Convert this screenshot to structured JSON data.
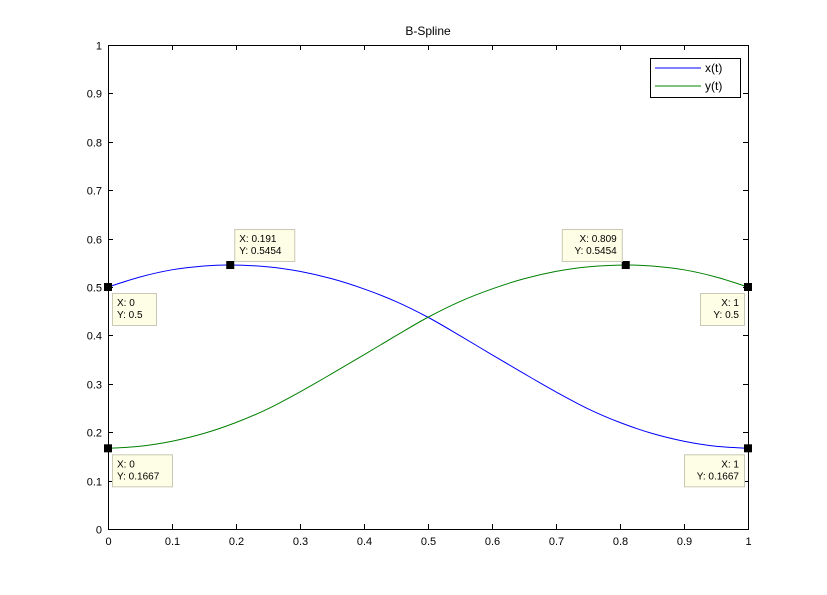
{
  "chart_data": {
    "type": "line",
    "title": "B-Spline",
    "xlabel": "",
    "ylabel": "",
    "xlim": [
      0,
      1
    ],
    "ylim": [
      0,
      1
    ],
    "xticks": [
      "0",
      "0.1",
      "0.2",
      "0.3",
      "0.4",
      "0.5",
      "0.6",
      "0.7",
      "0.8",
      "0.9",
      "1"
    ],
    "yticks": [
      "0",
      "0.1",
      "0.2",
      "0.3",
      "0.4",
      "0.5",
      "0.6",
      "0.7",
      "0.8",
      "0.9",
      "1"
    ],
    "grid": false,
    "legend_position": "top-right",
    "series": [
      {
        "name": "x(t)",
        "color": "#0000ff",
        "x": [
          0,
          0.05,
          0.1,
          0.15,
          0.191,
          0.25,
          0.3,
          0.35,
          0.4,
          0.45,
          0.5,
          0.55,
          0.6,
          0.65,
          0.7,
          0.75,
          0.8,
          0.85,
          0.9,
          0.95,
          1
        ],
        "y": [
          0.5,
          0.5207,
          0.5355,
          0.5433,
          0.5454,
          0.5417,
          0.5323,
          0.517,
          0.496,
          0.47,
          0.4375,
          0.3994,
          0.36,
          0.3211,
          0.2833,
          0.2484,
          0.22,
          0.1975,
          0.1813,
          0.1709,
          0.1667
        ]
      },
      {
        "name": "y(t)",
        "color": "#008000",
        "x": [
          0,
          0.05,
          0.1,
          0.15,
          0.2,
          0.25,
          0.3,
          0.35,
          0.4,
          0.45,
          0.5,
          0.55,
          0.6,
          0.65,
          0.7,
          0.75,
          0.809,
          0.85,
          0.9,
          0.95,
          1
        ],
        "y": [
          0.1667,
          0.1709,
          0.1813,
          0.1975,
          0.22,
          0.2484,
          0.2833,
          0.3211,
          0.36,
          0.3994,
          0.4375,
          0.47,
          0.496,
          0.517,
          0.5323,
          0.5417,
          0.5454,
          0.5433,
          0.5355,
          0.5207,
          0.5
        ]
      }
    ],
    "datatips": [
      {
        "x": 0,
        "y": 0.5,
        "lines": [
          "X: 0",
          "Y: 0.5"
        ],
        "placement": "below-right"
      },
      {
        "x": 0.191,
        "y": 0.5454,
        "lines": [
          "X: 0.191",
          "Y: 0.5454"
        ],
        "placement": "above-right"
      },
      {
        "x": 0.809,
        "y": 0.5454,
        "lines": [
          "X: 0.809",
          "Y: 0.5454"
        ],
        "placement": "above-left"
      },
      {
        "x": 1,
        "y": 0.5,
        "lines": [
          "X: 1",
          "Y: 0.5"
        ],
        "placement": "below-left"
      },
      {
        "x": 0,
        "y": 0.1667,
        "lines": [
          "X: 0",
          "Y: 0.1667"
        ],
        "placement": "below-right"
      },
      {
        "x": 1,
        "y": 0.1667,
        "lines": [
          "X: 1",
          "Y: 0.1667"
        ],
        "placement": "below-left"
      }
    ]
  }
}
